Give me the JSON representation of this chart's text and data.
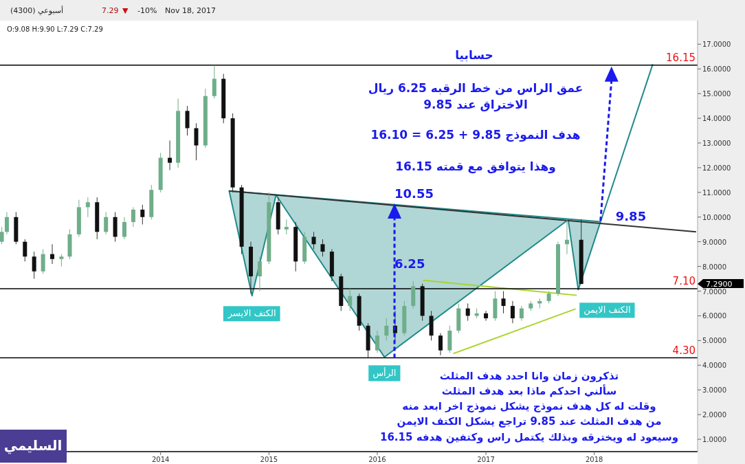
{
  "chart_data": {
    "type": "candlestick",
    "title": "حسابيا",
    "subtitle": "O:9.08  H:9.90  L:7.29  C:7.29",
    "x": [
      "2012-07-15",
      "2012-08-01",
      "2012-09-01",
      "2012-10-01",
      "2012-11-01",
      "2012-12-01",
      "2013-01-01",
      "2013-02-01",
      "2013-03-01",
      "2013-04-01",
      "2013-05-01",
      "2013-06-01",
      "2013-07-01",
      "2013-08-01",
      "2013-09-01",
      "2013-10-01",
      "2013-11-01",
      "2013-12-01",
      "2014-01-01",
      "2014-02-01",
      "2014-03-01",
      "2014-04-01",
      "2014-05-01",
      "2014-06-01",
      "2014-07-01",
      "2014-08-01",
      "2014-09-01",
      "2014-10-01",
      "2014-11-01",
      "2014-12-01",
      "2015-01-01",
      "2015-02-01",
      "2015-03-01",
      "2015-04-01",
      "2015-05-01",
      "2015-06-01",
      "2015-07-01",
      "2015-08-01",
      "2015-09-01",
      "2015-10-01",
      "2015-11-01",
      "2015-12-01",
      "2016-01-01",
      "2016-02-01",
      "2016-03-01",
      "2016-04-01",
      "2016-05-01",
      "2016-06-01",
      "2016-07-01",
      "2016-08-01",
      "2016-09-01",
      "2016-10-01",
      "2016-11-01",
      "2016-12-01",
      "2017-01-01",
      "2017-02-01",
      "2017-03-01",
      "2017-04-01",
      "2017-05-01",
      "2017-06-01",
      "2017-07-01",
      "2017-08-01",
      "2017-09-01",
      "2017-10-01",
      "2017-11-18"
    ],
    "ohlc": [
      [
        9.0,
        9.6,
        8.9,
        9.4
      ],
      [
        9.4,
        10.2,
        9.3,
        10.0
      ],
      [
        10.0,
        10.2,
        8.9,
        9.0
      ],
      [
        9.0,
        9.1,
        8.2,
        8.4
      ],
      [
        8.4,
        8.6,
        7.5,
        7.8
      ],
      [
        7.8,
        8.7,
        7.7,
        8.5
      ],
      [
        8.5,
        8.9,
        8.1,
        8.3
      ],
      [
        8.3,
        8.5,
        8.0,
        8.4
      ],
      [
        8.4,
        9.5,
        8.3,
        9.3
      ],
      [
        9.3,
        10.7,
        9.2,
        10.4
      ],
      [
        10.4,
        10.8,
        10.0,
        10.6
      ],
      [
        10.6,
        10.8,
        9.1,
        9.4
      ],
      [
        9.4,
        10.2,
        9.3,
        10.0
      ],
      [
        10.0,
        10.2,
        9.0,
        9.2
      ],
      [
        9.2,
        10.0,
        9.1,
        9.8
      ],
      [
        9.8,
        10.4,
        9.6,
        10.3
      ],
      [
        10.3,
        10.5,
        9.7,
        10.0
      ],
      [
        10.0,
        11.3,
        9.9,
        11.1
      ],
      [
        11.1,
        12.6,
        11.0,
        12.4
      ],
      [
        12.4,
        13.1,
        11.9,
        12.2
      ],
      [
        12.2,
        14.8,
        12.0,
        14.3
      ],
      [
        14.3,
        14.5,
        13.3,
        13.6
      ],
      [
        13.6,
        13.8,
        12.3,
        12.9
      ],
      [
        12.9,
        15.2,
        12.8,
        14.9
      ],
      [
        14.9,
        16.15,
        14.8,
        15.6
      ],
      [
        15.6,
        15.8,
        13.8,
        14.0
      ],
      [
        14.0,
        14.2,
        11.0,
        11.2
      ],
      [
        11.2,
        11.3,
        8.5,
        8.8
      ],
      [
        8.8,
        9.0,
        6.9,
        7.6
      ],
      [
        7.6,
        8.4,
        7.0,
        8.2
      ],
      [
        8.2,
        11.0,
        8.1,
        10.6
      ],
      [
        10.6,
        10.8,
        9.3,
        9.5
      ],
      [
        9.5,
        9.9,
        9.3,
        9.6
      ],
      [
        9.6,
        9.8,
        7.8,
        8.2
      ],
      [
        8.2,
        9.4,
        8.1,
        9.2
      ],
      [
        9.2,
        9.4,
        8.7,
        8.9
      ],
      [
        8.9,
        9.1,
        8.4,
        8.6
      ],
      [
        8.6,
        8.7,
        7.4,
        7.6
      ],
      [
        7.6,
        7.7,
        6.2,
        6.4
      ],
      [
        6.4,
        7.1,
        6.2,
        6.8
      ],
      [
        6.8,
        6.9,
        5.4,
        5.6
      ],
      [
        5.6,
        5.7,
        4.3,
        4.6
      ],
      [
        4.6,
        5.4,
        4.5,
        5.2
      ],
      [
        5.2,
        5.9,
        5.0,
        5.6
      ],
      [
        5.6,
        6.2,
        5.0,
        5.3
      ],
      [
        5.3,
        6.6,
        5.2,
        6.4
      ],
      [
        6.4,
        7.4,
        6.3,
        7.2
      ],
      [
        7.2,
        7.3,
        5.8,
        6.0
      ],
      [
        6.0,
        6.2,
        5.0,
        5.2
      ],
      [
        5.2,
        5.3,
        4.4,
        4.6
      ],
      [
        4.6,
        5.6,
        4.5,
        5.4
      ],
      [
        5.4,
        6.5,
        5.3,
        6.3
      ],
      [
        6.3,
        6.5,
        5.8,
        6.0
      ],
      [
        6.0,
        6.3,
        5.9,
        6.1
      ],
      [
        6.1,
        6.2,
        5.8,
        5.9
      ],
      [
        5.9,
        7.0,
        5.8,
        6.7
      ],
      [
        6.7,
        7.0,
        6.1,
        6.4
      ],
      [
        6.4,
        6.6,
        5.7,
        5.9
      ],
      [
        5.9,
        6.4,
        5.8,
        6.3
      ],
      [
        6.3,
        6.6,
        6.2,
        6.5
      ],
      [
        6.5,
        6.7,
        6.3,
        6.6
      ],
      [
        6.6,
        7.0,
        6.5,
        6.9
      ],
      [
        6.9,
        9.0,
        6.8,
        8.9
      ],
      [
        8.9,
        9.9,
        8.5,
        9.08
      ],
      [
        9.08,
        9.9,
        7.29,
        7.29
      ]
    ],
    "series": [
      {
        "type": "area",
        "color": "#1f8a8a",
        "x": [
          "2014-08-20",
          "2014-11-05",
          "2015-01-25",
          "2016-01-25",
          "2017-10-05",
          "2017-11-08",
          "2018-01-22",
          "2014-08-20"
        ],
        "values": [
          11.06,
          6.81,
          10.89,
          4.33,
          9.89,
          7.06,
          9.81,
          11.06
        ]
      },
      {
        "type": "line",
        "color": "#1f8a8a",
        "x": [
          "2018-01-22",
          "2018-07-17"
        ],
        "values": [
          9.81,
          16.19
        ]
      },
      {
        "type": "line",
        "color": "#333333",
        "x": [
          "2014-08-20",
          "2018-12-10"
        ],
        "values": [
          11.06,
          9.4
        ]
      },
      {
        "type": "line",
        "color": "#a8d42a",
        "x": [
          "2016-06-03",
          "2017-11-03"
        ],
        "values": [
          7.44,
          6.83
        ]
      },
      {
        "type": "line",
        "color": "#a8d42a",
        "x": [
          "2016-09-13",
          "2017-10-30"
        ],
        "values": [
          4.47,
          6.28
        ]
      }
    ],
    "ref_lines": [
      {
        "axis": "y",
        "value": 16.15,
        "label": "16.15",
        "color": "#000000"
      },
      {
        "axis": "y",
        "value": 7.1,
        "label": "7.10",
        "color": "#000000"
      },
      {
        "axis": "y",
        "value": 4.3,
        "label": "4.30",
        "color": "#000000"
      }
    ],
    "xlim": [
      "2012-07-09",
      "2018-12-15"
    ],
    "xticks": [
      {
        "value": "2014-01-01",
        "label": "2014"
      },
      {
        "value": "2015-01-01",
        "label": "2015"
      },
      {
        "value": "2016-01-01",
        "label": "2016"
      },
      {
        "value": "2017-01-01",
        "label": "2017"
      },
      {
        "value": "2018-01-01",
        "label": "2018"
      }
    ],
    "ylim": [
      0.5,
      17.9
    ],
    "yticks": [
      {
        "value": 1,
        "label": "1.0000"
      },
      {
        "value": 2,
        "label": "2.0000"
      },
      {
        "value": 3,
        "label": "3.0000"
      },
      {
        "value": 4,
        "label": "4.0000"
      },
      {
        "value": 5,
        "label": "5.0000"
      },
      {
        "value": 6,
        "label": "6.0000"
      },
      {
        "value": 7,
        "label": "7.0000"
      },
      {
        "value": 8,
        "label": "8.0000"
      },
      {
        "value": 9,
        "label": "9.0000"
      },
      {
        "value": 10,
        "label": "10.0000"
      },
      {
        "value": 11,
        "label": "11.0000"
      },
      {
        "value": 12,
        "label": "12.0000"
      },
      {
        "value": 13,
        "label": "13.0000"
      },
      {
        "value": 14,
        "label": "14.0000"
      },
      {
        "value": 15,
        "label": "15.0000"
      },
      {
        "value": 16,
        "label": "16.0000"
      },
      {
        "value": 17,
        "label": "17.0000"
      }
    ],
    "grid": false,
    "annotations": [
      "(4300) أسبوعي",
      "7.29",
      "▼",
      "-10%",
      "Nov 18, 2017",
      "عمق الراس من خط الرقبه 6.25 ريال",
      "الاختراق عند 9.85",
      "هدف النموذج 9.85 + 6.25 = 16.10",
      "وهذا يتوافق مع قمته 16.15",
      "تذكرون زمان وانا احدد هدف المثلث",
      "سألني احدكم ماذا بعد هدف المثلث",
      "وقلت له كل هدف نموذج يشكل نموذج اخر ابعد منه",
      "من هدف المثلث عند 9.85 تراجع يشكل الكتف الايمن",
      "وسيعود له ويخترقه وبذلك يكتمل راس وكتفين هدفه 16.15",
      "السليمي",
      "7.2900",
      "6.25",
      {
        "text": "10.55",
        "x": "2016-02-28",
        "y": 10.55
      },
      {
        "text": "9.85",
        "x": "2018-01-22",
        "y": 9.85
      },
      {
        "text": "الكتف الايسر",
        "x": "2014-11-05",
        "y": 6.81
      },
      {
        "text": "الرأس",
        "x": "2016-01-25",
        "y": 4.33
      },
      {
        "text": "الكتف الايمن",
        "x": "2017-11-08",
        "y": 7.06
      }
    ]
  }
}
